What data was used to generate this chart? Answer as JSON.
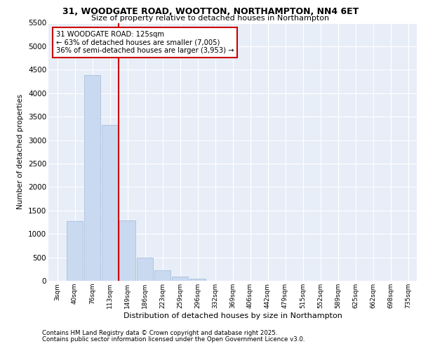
{
  "title_line1": "31, WOODGATE ROAD, WOOTTON, NORTHAMPTON, NN4 6ET",
  "title_line2": "Size of property relative to detached houses in Northampton",
  "xlabel": "Distribution of detached houses by size in Northampton",
  "ylabel": "Number of detached properties",
  "categories": [
    "3sqm",
    "40sqm",
    "76sqm",
    "113sqm",
    "149sqm",
    "186sqm",
    "223sqm",
    "259sqm",
    "296sqm",
    "332sqm",
    "369sqm",
    "406sqm",
    "442sqm",
    "479sqm",
    "515sqm",
    "552sqm",
    "589sqm",
    "625sqm",
    "662sqm",
    "698sqm",
    "735sqm"
  ],
  "values": [
    0,
    1270,
    4380,
    3320,
    1280,
    500,
    230,
    90,
    40,
    0,
    0,
    0,
    0,
    0,
    0,
    0,
    0,
    0,
    0,
    0,
    0
  ],
  "bar_color": "#c9d9f0",
  "bar_edge_color": "#a0b8d8",
  "vline_x": 3.5,
  "vline_color": "#cc0000",
  "annotation_title": "31 WOODGATE ROAD: 125sqm",
  "annotation_line1": "← 63% of detached houses are smaller (7,005)",
  "annotation_line2": "36% of semi-detached houses are larger (3,953) →",
  "annotation_box_color": "#cc0000",
  "ylim": [
    0,
    5500
  ],
  "yticks": [
    0,
    500,
    1000,
    1500,
    2000,
    2500,
    3000,
    3500,
    4000,
    4500,
    5000,
    5500
  ],
  "bg_color": "#e8eef8",
  "grid_color": "#ffffff",
  "footer_line1": "Contains HM Land Registry data © Crown copyright and database right 2025.",
  "footer_line2": "Contains public sector information licensed under the Open Government Licence v3.0."
}
